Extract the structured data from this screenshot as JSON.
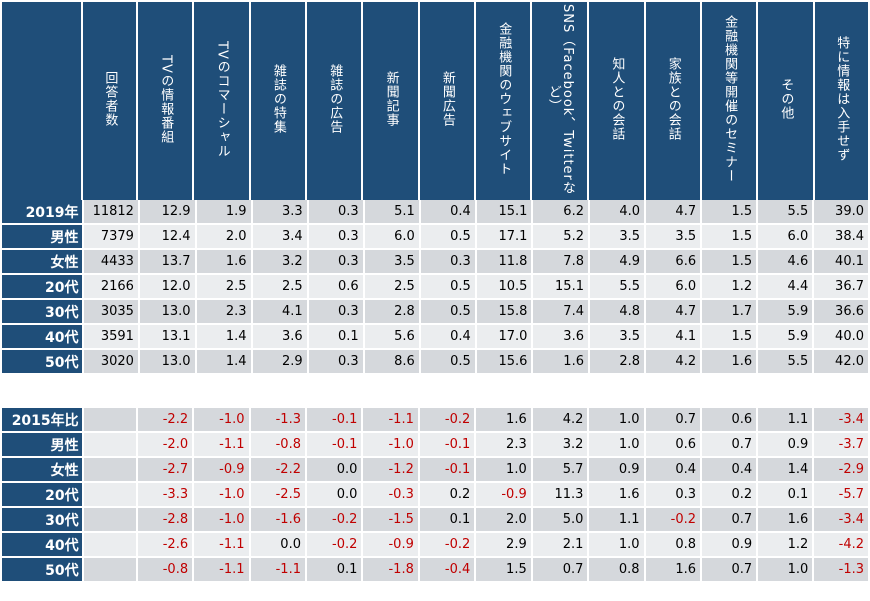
{
  "chart_data": {
    "type": "table",
    "columns": [
      "回答者数",
      "TVの情報番組",
      "TVのコマーシャル",
      "雑誌の特集",
      "雑誌の広告",
      "新聞記事",
      "新聞広告",
      "金融機関のウェブサイト",
      "SNS（Facebook、Twitterなど）",
      "知人との会話",
      "家族との会話",
      "金融機関等開催のセミナー",
      "その他",
      "特に情報は入手せず"
    ],
    "sections": [
      {
        "id": "2019",
        "rows": [
          {
            "label": "2019年",
            "values": [
              "11812",
              "12.9",
              "1.9",
              "3.3",
              "0.3",
              "5.1",
              "0.4",
              "15.1",
              "6.2",
              "4.0",
              "4.7",
              "1.5",
              "5.5",
              "39.0"
            ]
          },
          {
            "label": "男性",
            "values": [
              "7379",
              "12.4",
              "2.0",
              "3.4",
              "0.3",
              "6.0",
              "0.5",
              "17.1",
              "5.2",
              "3.5",
              "3.5",
              "1.5",
              "6.0",
              "38.4"
            ]
          },
          {
            "label": "女性",
            "values": [
              "4433",
              "13.7",
              "1.6",
              "3.2",
              "0.3",
              "3.5",
              "0.3",
              "11.8",
              "7.8",
              "4.9",
              "6.6",
              "1.5",
              "4.6",
              "40.1"
            ]
          },
          {
            "label": "20代",
            "values": [
              "2166",
              "12.0",
              "2.5",
              "2.5",
              "0.6",
              "2.5",
              "0.5",
              "10.5",
              "15.1",
              "5.5",
              "6.0",
              "1.2",
              "4.4",
              "36.7"
            ]
          },
          {
            "label": "30代",
            "values": [
              "3035",
              "13.0",
              "2.3",
              "4.1",
              "0.3",
              "2.8",
              "0.5",
              "15.8",
              "7.4",
              "4.8",
              "4.7",
              "1.7",
              "5.9",
              "36.6"
            ]
          },
          {
            "label": "40代",
            "values": [
              "3591",
              "13.1",
              "1.4",
              "3.6",
              "0.1",
              "5.6",
              "0.4",
              "17.0",
              "3.6",
              "3.5",
              "4.1",
              "1.5",
              "5.9",
              "40.0"
            ]
          },
          {
            "label": "50代",
            "values": [
              "3020",
              "13.0",
              "1.4",
              "2.9",
              "0.3",
              "8.6",
              "0.5",
              "15.6",
              "1.6",
              "2.8",
              "4.2",
              "1.6",
              "5.5",
              "42.0"
            ]
          }
        ]
      },
      {
        "id": "diff",
        "rows": [
          {
            "label": "2015年比",
            "values": [
              "",
              "-2.2",
              "-1.0",
              "-1.3",
              "-0.1",
              "-1.1",
              "-0.2",
              "1.6",
              "4.2",
              "1.0",
              "0.7",
              "0.6",
              "1.1",
              "-3.4"
            ]
          },
          {
            "label": "男性",
            "values": [
              "",
              "-2.0",
              "-1.1",
              "-0.8",
              "-0.1",
              "-1.0",
              "-0.1",
              "2.3",
              "3.2",
              "1.0",
              "0.6",
              "0.7",
              "0.9",
              "-3.7"
            ]
          },
          {
            "label": "女性",
            "values": [
              "",
              "-2.7",
              "-0.9",
              "-2.2",
              "0.0",
              "-1.2",
              "-0.1",
              "1.0",
              "5.7",
              "0.9",
              "0.4",
              "0.4",
              "1.4",
              "-2.9"
            ]
          },
          {
            "label": "20代",
            "values": [
              "",
              "-3.3",
              "-1.0",
              "-2.5",
              "0.0",
              "-0.3",
              "0.2",
              "-0.9",
              "11.3",
              "1.6",
              "0.3",
              "0.2",
              "0.1",
              "-5.7"
            ]
          },
          {
            "label": "30代",
            "values": [
              "",
              "-2.8",
              "-1.0",
              "-1.6",
              "-0.2",
              "-1.5",
              "0.1",
              "2.0",
              "5.0",
              "1.1",
              "-0.2",
              "0.7",
              "1.6",
              "-3.4"
            ]
          },
          {
            "label": "40代",
            "values": [
              "",
              "-2.6",
              "-1.1",
              "0.0",
              "-0.2",
              "-0.9",
              "-0.2",
              "2.9",
              "2.1",
              "1.0",
              "0.8",
              "0.9",
              "1.2",
              "-4.2"
            ]
          },
          {
            "label": "50代",
            "values": [
              "",
              "-0.8",
              "-1.1",
              "-1.1",
              "0.1",
              "-1.8",
              "-0.4",
              "1.5",
              "0.7",
              "0.8",
              "1.6",
              "0.7",
              "1.0",
              "-1.3"
            ]
          }
        ]
      }
    ],
    "colors": {
      "header_bg": "#1f4e79",
      "header_text": "#ffffff",
      "row_odd": "#d5d8dc",
      "row_even": "#ebedef",
      "negative": "#c00000"
    }
  }
}
